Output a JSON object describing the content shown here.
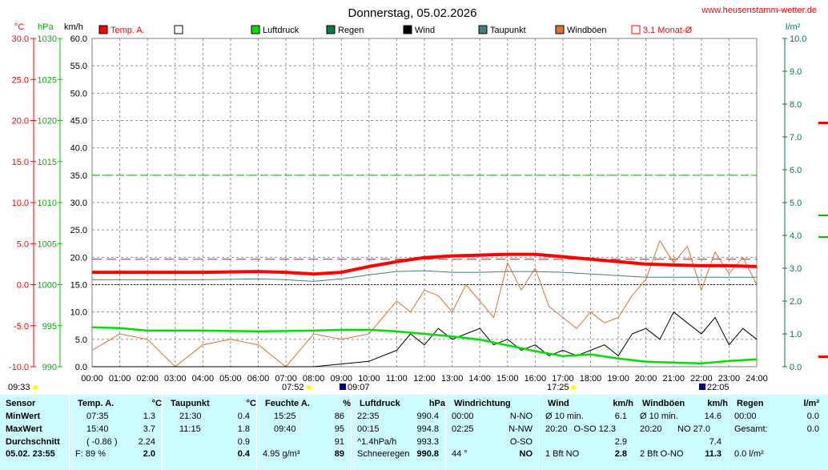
{
  "title": "Donnerstag, 05.02.2026",
  "website": "www.heusenstamm-wetter.de",
  "axes": {
    "celsius_unit": "°C",
    "hpa_unit": "hPa",
    "kmh_unit": "km/h",
    "rain_unit": "l/m²",
    "celsius_ticks": [
      "30.0",
      "25.0",
      "20.0",
      "15.0",
      "10.0",
      "5.0",
      "0.0",
      "-5.0",
      "-10.0"
    ],
    "hpa_ticks": [
      "1030",
      "1025",
      "1020",
      "1015",
      "1010",
      "1005",
      "1000",
      "995",
      "990"
    ],
    "kmh_ticks": [
      "60.0",
      "55.0",
      "50.0",
      "45.0",
      "40.0",
      "35.0",
      "30.0",
      "25.0",
      "20.0",
      "15.0",
      "10.0",
      "5.0",
      "0.0"
    ],
    "rain_ticks": [
      "10.0",
      "9.0",
      "8.0",
      "7.0",
      "6.0",
      "5.0",
      "4.0",
      "3.0",
      "2.0",
      "1.0",
      "0.0"
    ],
    "time_ticks": [
      "00:00",
      "01:00",
      "02:00",
      "03:00",
      "04:00",
      "05:00",
      "06:00",
      "07:00",
      "08:00",
      "09:00",
      "10:00",
      "11:00",
      "12:00",
      "13:00",
      "14:00",
      "15:00",
      "16:00",
      "17:00",
      "18:00",
      "19:00",
      "20:00",
      "21:00",
      "22:00",
      "23:00",
      "24:00"
    ]
  },
  "legend": [
    {
      "label": "Temp. A.",
      "color": "#ff0000",
      "style": "filled"
    },
    {
      "label": "",
      "color": "#ffffff",
      "style": "outline-black"
    },
    {
      "label": "Luftdruck",
      "color": "#00e000",
      "style": "filled"
    },
    {
      "label": "Regen",
      "color": "#008040",
      "style": "filled"
    },
    {
      "label": "Wind",
      "color": "#000000",
      "style": "filled"
    },
    {
      "label": "Taupunkt",
      "color": "#408080",
      "style": "filled"
    },
    {
      "label": "Windböen",
      "color": "#e07030",
      "style": "filled"
    },
    {
      "label": "3.1 Monat-Ø",
      "color": "#ff0000",
      "style": "outline"
    }
  ],
  "sun_markers": {
    "left": "09:33",
    "sunrise": "07:52",
    "moonrise": "09:07",
    "sunset": "17:25",
    "moonset": "22:05"
  },
  "chart_data": {
    "type": "line",
    "x_label": "",
    "x_range": [
      0,
      24
    ],
    "series": [
      {
        "name": "Temp. A.",
        "axis": "°C",
        "color": "#ff0000",
        "x": [
          0,
          2,
          4,
          6,
          7,
          8,
          9,
          10,
          11,
          12,
          13,
          14,
          15,
          16,
          17,
          18,
          19,
          20,
          21,
          22,
          23,
          24
        ],
        "values": [
          1.5,
          1.5,
          1.5,
          1.6,
          1.5,
          1.3,
          1.5,
          2.2,
          2.8,
          3.3,
          3.5,
          3.6,
          3.7,
          3.7,
          3.4,
          3.1,
          2.8,
          2.5,
          2.4,
          2.3,
          2.3,
          2.2
        ]
      },
      {
        "name": "Taupunkt",
        "axis": "°C",
        "color": "#408080",
        "x": [
          0,
          4,
          6,
          7,
          8,
          9,
          10,
          11,
          12,
          13,
          14,
          15,
          16,
          17,
          18,
          19,
          20,
          21,
          22,
          23,
          24
        ],
        "values": [
          0.6,
          0.6,
          0.7,
          0.6,
          0.4,
          0.7,
          1.2,
          1.6,
          1.7,
          1.5,
          1.5,
          1.6,
          1.6,
          1.5,
          1.3,
          1.1,
          0.9,
          0.9,
          0.9,
          0.9,
          0.9
        ]
      },
      {
        "name": "Luftdruck",
        "axis": "hPa",
        "color": "#00e000",
        "x": [
          0,
          1,
          2,
          4,
          6,
          8,
          9,
          10,
          11,
          12,
          13,
          14,
          15,
          16,
          17,
          18,
          19,
          20,
          21,
          22,
          23,
          24
        ],
        "values": [
          994.8,
          994.7,
          994.4,
          994.4,
          994.3,
          994.4,
          994.5,
          994.5,
          994.3,
          994.0,
          993.7,
          993.3,
          992.6,
          991.9,
          991.3,
          991.5,
          991.0,
          990.6,
          990.5,
          990.4,
          990.7,
          990.9
        ]
      },
      {
        "name": "Wind",
        "axis": "km/h",
        "color": "#000000",
        "x": [
          0,
          2,
          4,
          6,
          8,
          10,
          11,
          11.5,
          12,
          12.5,
          13,
          13.5,
          14,
          14.5,
          15,
          15.5,
          16,
          16.5,
          17,
          17.5,
          18,
          18.5,
          19,
          19.5,
          20,
          20.5,
          21,
          21.5,
          22,
          22.5,
          23,
          23.5,
          24
        ],
        "values": [
          0,
          0,
          0,
          0,
          0,
          1,
          3,
          6,
          4,
          7,
          5,
          6,
          7,
          4,
          5,
          3,
          4,
          2,
          3,
          2,
          3,
          4,
          2,
          6,
          7,
          5,
          10,
          8,
          6,
          9,
          4,
          7,
          5
        ]
      },
      {
        "name": "Windböen",
        "axis": "km/h",
        "color": "#e07030",
        "x": [
          0,
          1,
          2,
          3,
          4,
          5,
          6,
          7,
          8,
          9,
          10,
          10.5,
          11,
          11.5,
          12,
          12.5,
          13,
          13.5,
          14,
          14.5,
          15,
          15.5,
          16,
          16.5,
          17,
          17.5,
          18,
          18.5,
          19,
          19.5,
          20,
          20.5,
          21,
          21.5,
          22,
          22.5,
          23,
          23.5,
          24
        ],
        "values": [
          3,
          6,
          5,
          0,
          4,
          5,
          4,
          0,
          6,
          5,
          6,
          9,
          12,
          10,
          14,
          13,
          10,
          15,
          12,
          9,
          19,
          14,
          18,
          11,
          9,
          7,
          10,
          8,
          9,
          13,
          16,
          23,
          19,
          22,
          14,
          21,
          17,
          20,
          15
        ]
      },
      {
        "name": "3.1 Monat-Ø",
        "axis": "°C",
        "color": "#ff0000",
        "dashed": true,
        "x": [
          0,
          24
        ],
        "values": [
          3.1,
          3.1
        ]
      }
    ]
  },
  "stats": {
    "rows": [
      "Sensor",
      "MinWert",
      "MaxWert",
      "Durchschnitt",
      "05.02. 23:55"
    ],
    "columns": [
      {
        "title": "Temp. A.",
        "unit": "°C",
        "times": [
          "07:35",
          "15:40",
          "( -0.86 )",
          "F: 89 %"
        ],
        "values": [
          "1.3",
          "3.7",
          "2.24",
          "2.0"
        ]
      },
      {
        "title": "Taupunkt",
        "unit": "°C",
        "times": [
          "21:30",
          "11:15",
          "",
          ""
        ],
        "values": [
          "0.4",
          "1.8",
          "0.9",
          "0.4"
        ]
      },
      {
        "title": "Feuchte A.",
        "unit": "%",
        "times": [
          "15:25",
          "09:40",
          "",
          "4.95 g/m³"
        ],
        "values": [
          "86",
          "95",
          "91",
          "89"
        ]
      },
      {
        "title": "Luftdruck",
        "unit": "hPa",
        "times": [
          "22:35",
          "00:15",
          "^1.4hPa/h",
          "Schneeregen"
        ],
        "values": [
          "990.4",
          "994.8",
          "993.3",
          "990.8"
        ]
      },
      {
        "title": "Windrichtung",
        "unit": "",
        "times": [
          "00:00",
          "02:25",
          "",
          "44 °"
        ],
        "values": [
          "N-NO",
          "N-NW",
          "O-SO",
          "NO"
        ]
      },
      {
        "title": "Wind",
        "unit": "km/h",
        "times": [
          "Ø 10 min.",
          "20:20",
          "",
          "1 Bft NO"
        ],
        "mids": [
          "",
          "O-SO 12.3",
          "",
          ""
        ],
        "values": [
          "6.1",
          "",
          "2.9",
          "2.8"
        ]
      },
      {
        "title": "Windböen",
        "unit": "km/h",
        "times": [
          "Ø 10 min.",
          "20:20",
          "",
          "2 Bft O-NO"
        ],
        "mids": [
          "",
          "NO 27.0",
          "",
          ""
        ],
        "values": [
          "14.6",
          "",
          "7.4",
          "11.3"
        ]
      },
      {
        "title": "Regen",
        "unit": "l/m²",
        "times": [
          "00:00",
          "Gesamt:",
          "",
          "0.0 l/m²"
        ],
        "values": [
          "0.0",
          "0.0",
          "",
          ""
        ]
      }
    ]
  }
}
